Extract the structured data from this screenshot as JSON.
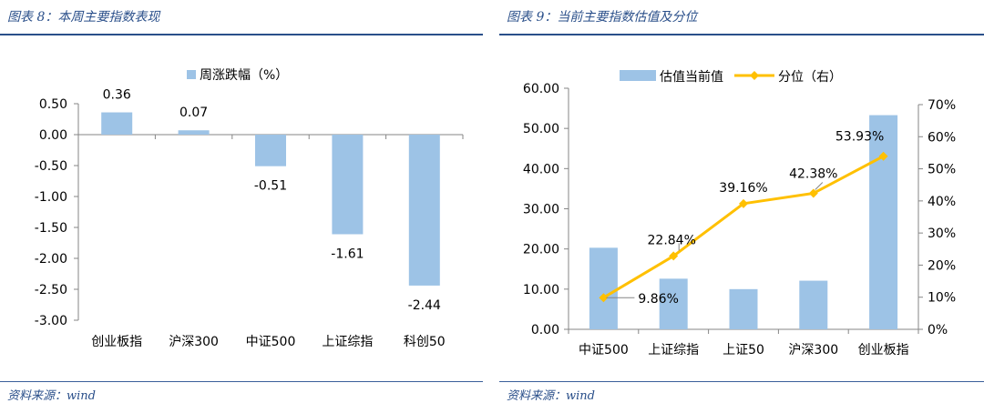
{
  "figures": [
    {
      "title": "图表 8：本周主要指数表现",
      "source": "资料来源：wind"
    },
    {
      "title": "图表 9：当前主要指数估值及分位",
      "source": "资料来源：wind"
    }
  ],
  "colors": {
    "bar": "#9dc3e6",
    "line": "#ffc000",
    "axis": "#868686",
    "title": "#2a4f8a"
  },
  "chart_data": [
    {
      "type": "bar",
      "legend_position": "top",
      "grid": false,
      "categories": [
        "创业板指",
        "沪深300",
        "中证500",
        "上证综指",
        "科创50"
      ],
      "series": [
        {
          "name": "周涨跌幅（%）",
          "values": [
            0.36,
            0.07,
            -0.51,
            -1.61,
            -2.44
          ]
        }
      ],
      "data_labels": [
        "0.36",
        "0.07",
        "-0.51",
        "-1.61",
        "-2.44"
      ],
      "ylim": [
        -3.0,
        0.5
      ],
      "yticks": [
        "0.50",
        "0.00",
        "-0.50",
        "-1.00",
        "-1.50",
        "-2.00",
        "-2.50",
        "-3.00"
      ]
    },
    {
      "type": "bar+line",
      "legend_position": "top",
      "grid": false,
      "categories": [
        "中证500",
        "上证综指",
        "上证50",
        "沪深300",
        "创业板指"
      ],
      "series": [
        {
          "name": "估值当前值",
          "type": "bar",
          "axis": "left",
          "values": [
            20.3,
            12.6,
            10.0,
            12.1,
            53.3
          ]
        },
        {
          "name": "分位（右）",
          "type": "line",
          "axis": "right",
          "values": [
            9.86,
            22.84,
            39.16,
            42.38,
            53.93
          ],
          "data_labels": [
            "9.86%",
            "22.84%",
            "39.16%",
            "42.38%",
            "53.93%"
          ]
        }
      ],
      "ylim_left": [
        0,
        60
      ],
      "yticks_left": [
        "0.00",
        "10.00",
        "20.00",
        "30.00",
        "40.00",
        "50.00",
        "60.00"
      ],
      "ylim_right": [
        0,
        70
      ],
      "yticks_right": [
        "0%",
        "10%",
        "20%",
        "30%",
        "40%",
        "50%",
        "60%",
        "70%"
      ]
    }
  ]
}
